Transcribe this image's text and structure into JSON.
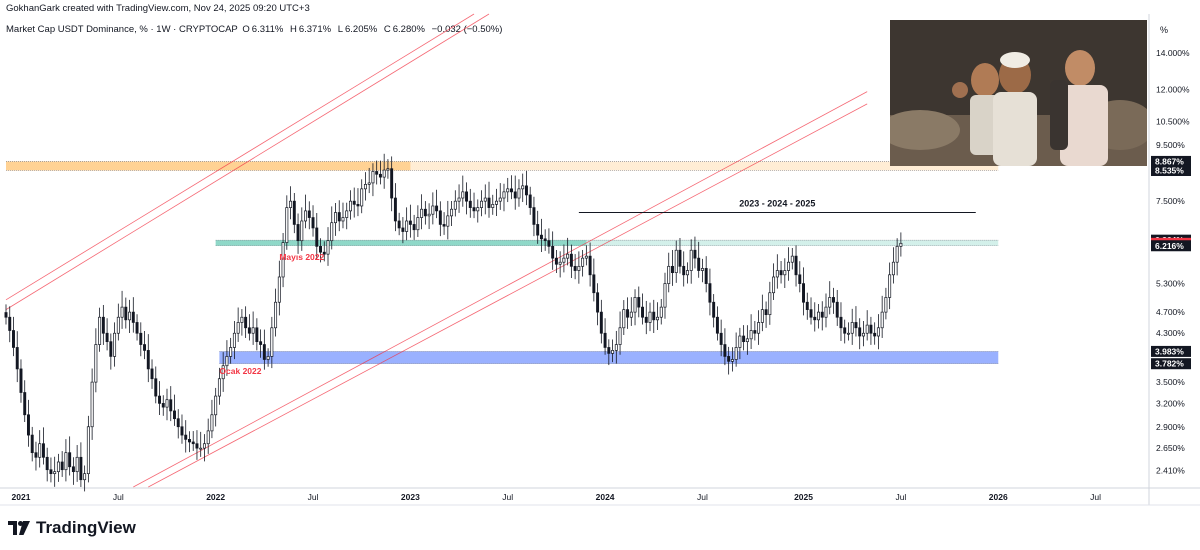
{
  "header": {
    "attribution": "GokhanGark created with TradingView.com, Nov 24, 2025 09:20 UTC+3",
    "symbol": "Market Cap USDT Dominance, % · 1W · CRYPTOCAP",
    "open_label": "O",
    "open": "6.311%",
    "high_label": "H",
    "high": "6.371%",
    "low_label": "L",
    "low": "6.205%",
    "close_label": "C",
    "close": "6.280%",
    "change": "−0.032 (−0.50%)"
  },
  "axis": {
    "unit_label": "%"
  },
  "footer": {
    "brand": "TradingView"
  },
  "colors": {
    "up": "#131722",
    "down": "#131722",
    "zone_top": "#ffcc88",
    "zone_mid": "#82d4c2",
    "zone_low": "#8fa8ff",
    "channel": "#f23645",
    "label_red": "#f23645",
    "label_black": "#131722"
  },
  "chart_data": {
    "type": "candlestick",
    "scale": "log",
    "ylim": [
      2.25,
      16.5
    ],
    "xlim": [
      "2020-12-07",
      "2026-10-12"
    ],
    "y_ticks": [
      "14.000%",
      "12.000%",
      "10.500%",
      "9.500%",
      "7.500%",
      "5.300%",
      "4.700%",
      "4.300%",
      "3.500%",
      "3.200%",
      "2.900%",
      "2.650%",
      "2.410%"
    ],
    "x_ticks": [
      {
        "label": "2021",
        "date": "2021-01-04",
        "bold": true
      },
      {
        "label": "Jul",
        "date": "2021-07-05",
        "bold": false
      },
      {
        "label": "2022",
        "date": "2022-01-03",
        "bold": true
      },
      {
        "label": "Jul",
        "date": "2022-07-04",
        "bold": false
      },
      {
        "label": "2023",
        "date": "2023-01-02",
        "bold": true
      },
      {
        "label": "Jul",
        "date": "2023-07-03",
        "bold": false
      },
      {
        "label": "2024",
        "date": "2024-01-01",
        "bold": true
      },
      {
        "label": "Jul",
        "date": "2024-07-01",
        "bold": false
      },
      {
        "label": "2025",
        "date": "2025-01-06",
        "bold": true
      },
      {
        "label": "Jul",
        "date": "2025-07-07",
        "bold": false
      },
      {
        "label": "2026",
        "date": "2026-01-05",
        "bold": true
      },
      {
        "label": "Jul",
        "date": "2026-07-06",
        "bold": false
      }
    ],
    "price_labels": [
      {
        "text": "8.867%",
        "value": 8.867,
        "kind": "black"
      },
      {
        "text": "8.535%",
        "value": 8.535,
        "kind": "black"
      },
      {
        "text": "6.364%",
        "value": 6.364,
        "kind": "black"
      },
      {
        "text": "6.280%",
        "value": 6.28,
        "kind": "red"
      },
      {
        "text": "6.216%",
        "value": 6.216,
        "kind": "black"
      },
      {
        "text": "3.983%",
        "value": 3.983,
        "kind": "black"
      },
      {
        "text": "3.782%",
        "value": 3.782,
        "kind": "black"
      }
    ],
    "zones": [
      {
        "name": "top-zone",
        "y_low": 8.535,
        "y_high": 8.867,
        "x_start": "2020-12-07",
        "x_solid_end": "2023-01-02",
        "x_end": "2026-01-05",
        "color_key": "zone_top"
      },
      {
        "name": "mid-zone",
        "y_low": 6.216,
        "y_high": 6.364,
        "x_start": "2022-01-03",
        "x_solid_end": "2023-11-27",
        "x_end": "2026-01-05",
        "color_key": "zone_mid"
      },
      {
        "name": "low-zone",
        "y_low": 3.782,
        "y_high": 3.983,
        "x_start": "2022-01-10",
        "x_end": "2026-01-05",
        "color_key": "zone_low"
      }
    ],
    "channel_upper": [
      {
        "x": "2020-12-07",
        "y_from": 4.95,
        "x2": "2023-05-01",
        "y_to": 16.5
      },
      {
        "x": "2020-12-07",
        "y_from": 4.75,
        "x2": "2023-05-29",
        "y_to": 16.5
      }
    ],
    "channel_lower": [
      {
        "x": "2021-08-02",
        "y_from": 2.25,
        "x2": "2025-05-05",
        "y_to": 11.9
      },
      {
        "x": "2021-08-30",
        "y_from": 2.25,
        "x2": "2025-05-05",
        "y_to": 11.3
      }
    ],
    "horizontal_line": {
      "y": 7.15,
      "x_start": "2023-11-13",
      "x_end": "2025-11-24",
      "label": "2023 - 2024 - 2025"
    },
    "annotations": [
      {
        "text": "Mayıs 2022",
        "x": "2022-05-02",
        "y": 5.85,
        "color_key": "label_red"
      },
      {
        "text": "Ocak 2022",
        "x": "2022-01-10",
        "y": 3.62,
        "color_key": "label_red"
      }
    ],
    "series": {
      "weeks_start": "2020-12-07",
      "closes": [
        4.6,
        4.35,
        4.05,
        3.7,
        3.35,
        3.05,
        2.8,
        2.6,
        2.55,
        2.7,
        2.55,
        2.42,
        2.38,
        2.4,
        2.5,
        2.42,
        2.6,
        2.45,
        2.4,
        2.55,
        2.32,
        2.38,
        2.9,
        3.5,
        4.1,
        4.6,
        4.3,
        4.15,
        3.9,
        4.3,
        4.6,
        4.8,
        4.55,
        4.7,
        4.5,
        4.3,
        4.1,
        4.0,
        3.7,
        3.55,
        3.3,
        3.2,
        3.15,
        3.25,
        3.1,
        3.0,
        2.9,
        2.8,
        2.75,
        2.72,
        2.7,
        2.65,
        2.65,
        2.7,
        2.85,
        3.05,
        3.3,
        3.55,
        3.75,
        3.9,
        4.05,
        4.3,
        4.5,
        4.6,
        4.4,
        4.3,
        4.4,
        4.15,
        4.1,
        3.85,
        3.9,
        4.4,
        4.9,
        5.45,
        6.3,
        7.3,
        7.5,
        6.8,
        6.35,
        6.9,
        7.2,
        7.0,
        6.7,
        6.2,
        6.05,
        6.0,
        6.35,
        6.85,
        7.15,
        6.9,
        7.0,
        7.2,
        7.5,
        7.4,
        7.35,
        7.9,
        8.05,
        8.1,
        8.5,
        8.4,
        8.3,
        8.55,
        8.6,
        7.6,
        6.9,
        6.7,
        6.6,
        6.9,
        6.8,
        6.65,
        7.0,
        7.25,
        7.05,
        7.1,
        7.35,
        7.2,
        6.8,
        6.75,
        7.05,
        7.25,
        7.5,
        7.6,
        7.8,
        7.5,
        7.3,
        7.2,
        7.3,
        7.5,
        7.6,
        7.3,
        7.4,
        7.5,
        7.6,
        7.8,
        7.9,
        7.8,
        7.6,
        7.9,
        8.0,
        7.7,
        7.3,
        6.8,
        6.5,
        6.4,
        6.35,
        6.2,
        5.9,
        5.75,
        5.8,
        5.9,
        6.0,
        5.7,
        5.6,
        5.7,
        5.9,
        5.95,
        5.5,
        5.1,
        4.7,
        4.3,
        4.05,
        3.95,
        4.0,
        4.1,
        4.4,
        4.75,
        4.6,
        4.7,
        5.0,
        4.8,
        4.6,
        4.5,
        4.7,
        4.55,
        4.6,
        4.8,
        5.3,
        5.7,
        5.55,
        6.1,
        5.7,
        5.5,
        5.6,
        6.1,
        5.9,
        5.6,
        5.65,
        5.3,
        4.9,
        4.6,
        4.3,
        4.1,
        3.9,
        3.82,
        3.85,
        4.05,
        4.25,
        4.15,
        4.2,
        4.35,
        4.3,
        4.5,
        4.75,
        4.65,
        5.1,
        5.45,
        5.6,
        5.5,
        5.6,
        5.8,
        5.95,
        5.5,
        5.3,
        4.9,
        4.75,
        4.6,
        4.55,
        4.7,
        4.6,
        4.8,
        5.0,
        4.9,
        4.6,
        4.4,
        4.3,
        4.3,
        4.5,
        4.4,
        4.25,
        4.3,
        4.45,
        4.3,
        4.25,
        4.4,
        4.7,
        5.0,
        5.5,
        5.8,
        6.2,
        6.28
      ]
    }
  }
}
